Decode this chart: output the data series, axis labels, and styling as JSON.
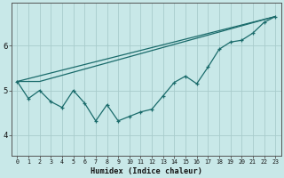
{
  "xlabel": "Humidex (Indice chaleur)",
  "bg_color": "#c8e8e8",
  "line_color": "#1a6b6b",
  "grid_color": "#a8cccc",
  "xlim_min": -0.5,
  "xlim_max": 23.5,
  "ylim_min": 3.55,
  "ylim_max": 6.95,
  "xticks": [
    0,
    1,
    2,
    3,
    4,
    5,
    6,
    7,
    8,
    9,
    10,
    11,
    12,
    13,
    14,
    15,
    16,
    17,
    18,
    19,
    20,
    21,
    22,
    23
  ],
  "yticks": [
    4,
    5,
    6
  ],
  "main_x": [
    0,
    1,
    2,
    3,
    4,
    5,
    6,
    7,
    8,
    9,
    10,
    11,
    12,
    13,
    14,
    15,
    16,
    17,
    18,
    19,
    20,
    21,
    22,
    23
  ],
  "main_y": [
    5.2,
    4.82,
    5.0,
    4.75,
    4.62,
    5.0,
    4.72,
    4.32,
    4.68,
    4.32,
    4.42,
    4.52,
    4.58,
    4.88,
    5.18,
    5.32,
    5.15,
    5.52,
    5.92,
    6.08,
    6.12,
    6.28,
    6.52,
    6.65
  ],
  "line2_x": [
    0,
    2,
    23
  ],
  "line2_y": [
    5.2,
    5.2,
    6.65
  ],
  "line3_x": [
    0,
    23
  ],
  "line3_y": [
    5.2,
    6.65
  ]
}
